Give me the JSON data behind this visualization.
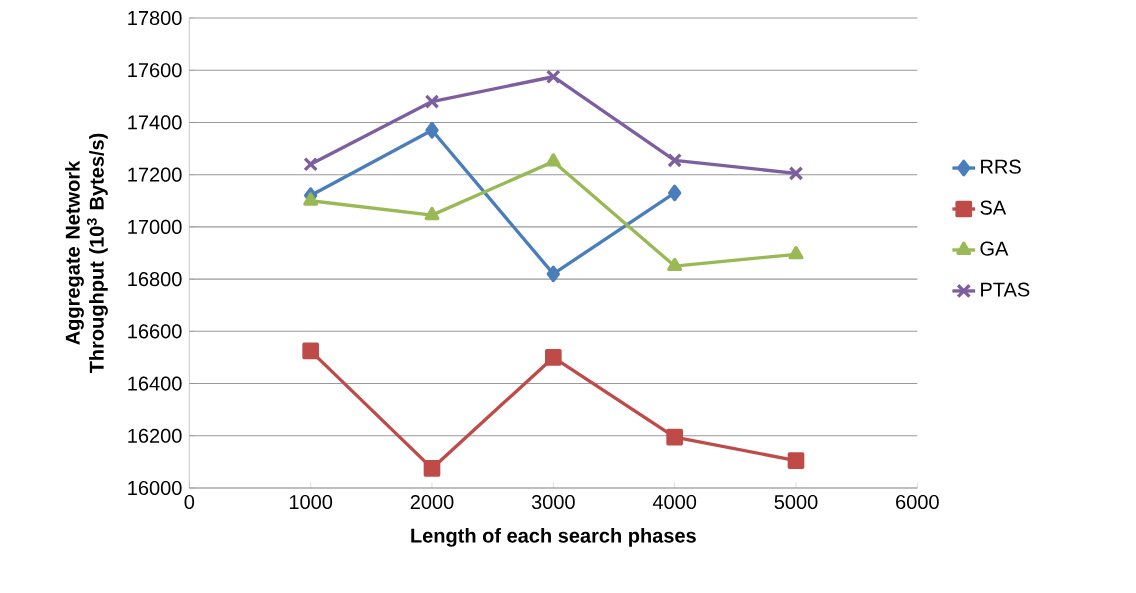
{
  "chart_data": {
    "type": "line",
    "xlabel": "Length of each search phases",
    "ylabel": "Aggregate Network Throughput (10$^{3}$ Bytes/s)",
    "x": [
      1000,
      2000,
      3000,
      4000,
      5000
    ],
    "series": [
      {
        "name": "RRS",
        "color": "#4a7ebb",
        "marker": "diamond",
        "values": [
          17120,
          17370,
          16820,
          17130,
          null
        ]
      },
      {
        "name": "SA",
        "color": "#be4b48",
        "marker": "square",
        "values": [
          16525,
          16075,
          16500,
          16195,
          16105
        ]
      },
      {
        "name": "GA",
        "color": "#98b954",
        "marker": "triangle",
        "values": [
          17100,
          17045,
          17250,
          16850,
          16895
        ]
      },
      {
        "name": "PTAS",
        "color": "#7d5fa0",
        "marker": "cross",
        "values": [
          17240,
          17480,
          17575,
          17255,
          17205
        ]
      }
    ],
    "xlim": [
      0,
      6000
    ],
    "xticks": [
      0,
      1000,
      2000,
      3000,
      4000,
      5000,
      6000
    ],
    "ylim": [
      16000,
      17800
    ],
    "yticks": [
      16000,
      16200,
      16400,
      16600,
      16800,
      17000,
      17200,
      17400,
      17600,
      17800
    ],
    "grid": "y",
    "legend": "right",
    "line_style": "solid"
  }
}
